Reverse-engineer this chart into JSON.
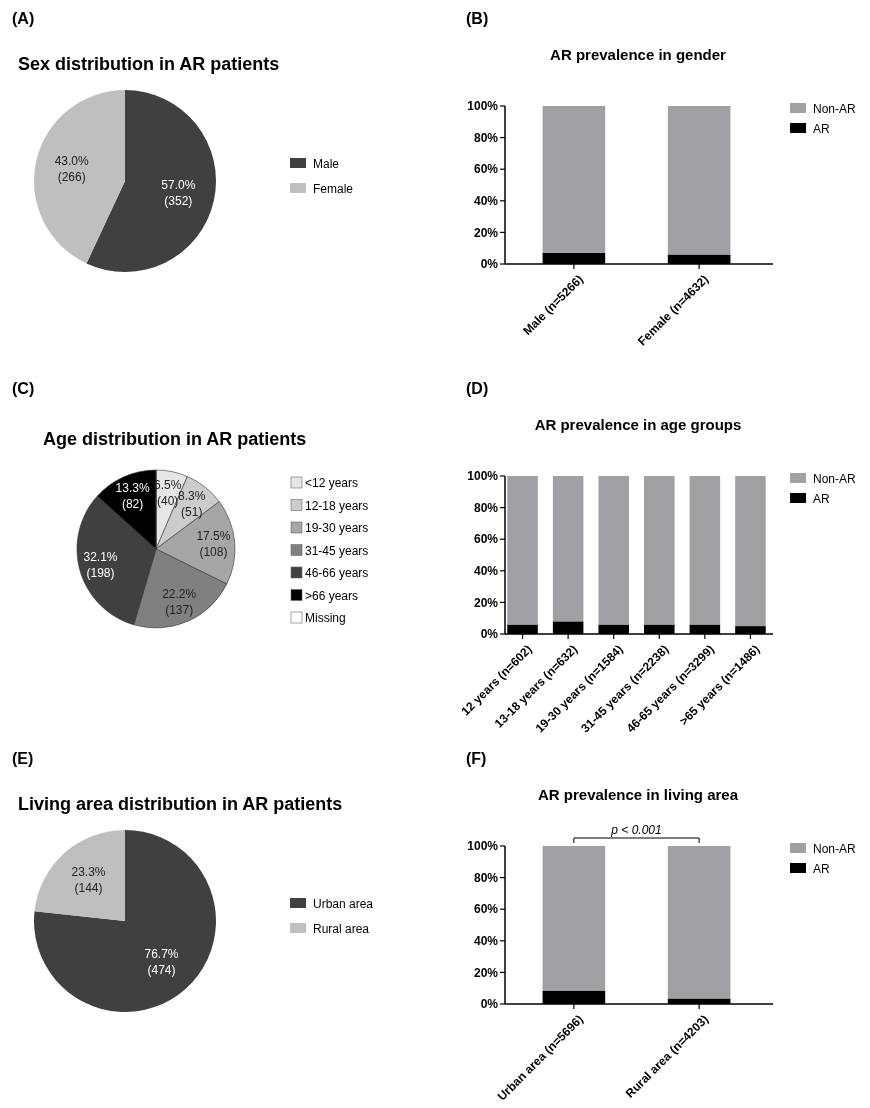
{
  "chart_data": [
    {
      "type": "pie",
      "title": "Sex distribution in AR patients",
      "annotations": [
        "(A)"
      ],
      "categories": [
        "Male",
        "Female"
      ],
      "values": [
        352,
        266
      ],
      "colors": [
        "#404040",
        "#bfbfbf"
      ],
      "value_labels": [
        "57.0%\n(352)",
        "43.0%\n(266)"
      ],
      "legend": "right"
    },
    {
      "type": "bar",
      "title": "AR prevalence in gender",
      "annotations": [
        "(B)"
      ],
      "categories": [
        "Male (n=5266)",
        "Female (n=4632)"
      ],
      "stacked": true,
      "series": [
        {
          "name": "AR",
          "color": "#000000",
          "values": [
            7,
            6
          ]
        },
        {
          "name": "Non-AR",
          "color": "#a0a0a4",
          "values": [
            93,
            94
          ]
        }
      ],
      "ylim": [
        0,
        100
      ],
      "yticks": [
        {
          "value": 0,
          "label": "0%"
        },
        {
          "value": 20,
          "label": "20%"
        },
        {
          "value": 40,
          "label": "40%"
        },
        {
          "value": 60,
          "label": "60%"
        },
        {
          "value": 80,
          "label": "80%"
        },
        {
          "value": 100,
          "label": "100%"
        }
      ],
      "legend": "right"
    },
    {
      "type": "pie",
      "title": "Age distribution in AR patients",
      "annotations": [
        "(C)"
      ],
      "categories": [
        "<12 years",
        "12-18 years",
        "19-30 years",
        "31-45 years",
        "46-66 years",
        ">66 years",
        "Missing"
      ],
      "values": [
        40,
        51,
        108,
        137,
        198,
        82,
        0
      ],
      "colors": [
        "#e6e6e6",
        "#cccccc",
        "#a6a6a6",
        "#808080",
        "#404040",
        "#000000",
        "#ffffff"
      ],
      "value_labels": [
        "6.5%\n(40)",
        "8.3%\n(51)",
        "17.5%\n(108)",
        "22.2%\n(137)",
        "32.1%\n(198)",
        "13.3%\n(82)",
        null
      ],
      "legend": "right"
    },
    {
      "type": "bar",
      "title": "AR prevalence in age groups",
      "annotations": [
        "(D)"
      ],
      "categories": [
        "12 years (n=602)",
        "13-18 years (n=632)",
        "19-30  years (n=1584)",
        "31-45 years (n=2238)",
        "46-65 years (n=3299)",
        ">65 years (n=1486)"
      ],
      "stacked": true,
      "series": [
        {
          "name": "AR",
          "color": "#000000",
          "values": [
            6,
            8,
            6,
            6,
            6,
            5
          ]
        },
        {
          "name": "Non-AR",
          "color": "#a0a0a4",
          "values": [
            94,
            92,
            94,
            94,
            94,
            95
          ]
        }
      ],
      "ylim": [
        0,
        100
      ],
      "yticks": [
        {
          "value": 0,
          "label": "0%"
        },
        {
          "value": 20,
          "label": "20%"
        },
        {
          "value": 40,
          "label": "40%"
        },
        {
          "value": 60,
          "label": "60%"
        },
        {
          "value": 80,
          "label": "80%"
        },
        {
          "value": 100,
          "label": "100%"
        }
      ],
      "legend": "right"
    },
    {
      "type": "pie",
      "title": "Living area distribution in AR patients",
      "annotations": [
        "(E)"
      ],
      "categories": [
        "Urban area",
        "Rural area"
      ],
      "values": [
        474,
        144
      ],
      "colors": [
        "#404040",
        "#bfbfbf"
      ],
      "value_labels": [
        "76.7%\n(474)",
        "23.3%\n(144)"
      ],
      "legend": "right"
    },
    {
      "type": "bar",
      "title": "AR prevalence in living area",
      "annotations": [
        "(F)",
        "p < 0.001"
      ],
      "categories": [
        "Urban area (n=5696)",
        "Rural area (n=4203)"
      ],
      "stacked": true,
      "series": [
        {
          "name": "AR",
          "color": "#000000",
          "values": [
            8.5,
            3.5
          ]
        },
        {
          "name": "Non-AR",
          "color": "#a0a0a4",
          "values": [
            91.5,
            96.5
          ]
        }
      ],
      "ylim": [
        0,
        100
      ],
      "yticks": [
        {
          "value": 0,
          "label": "0%"
        },
        {
          "value": 20,
          "label": "20%"
        },
        {
          "value": 40,
          "label": "40%"
        },
        {
          "value": 60,
          "label": "60%"
        },
        {
          "value": 80,
          "label": "80%"
        },
        {
          "value": 100,
          "label": "100%"
        }
      ],
      "legend": "right"
    }
  ]
}
